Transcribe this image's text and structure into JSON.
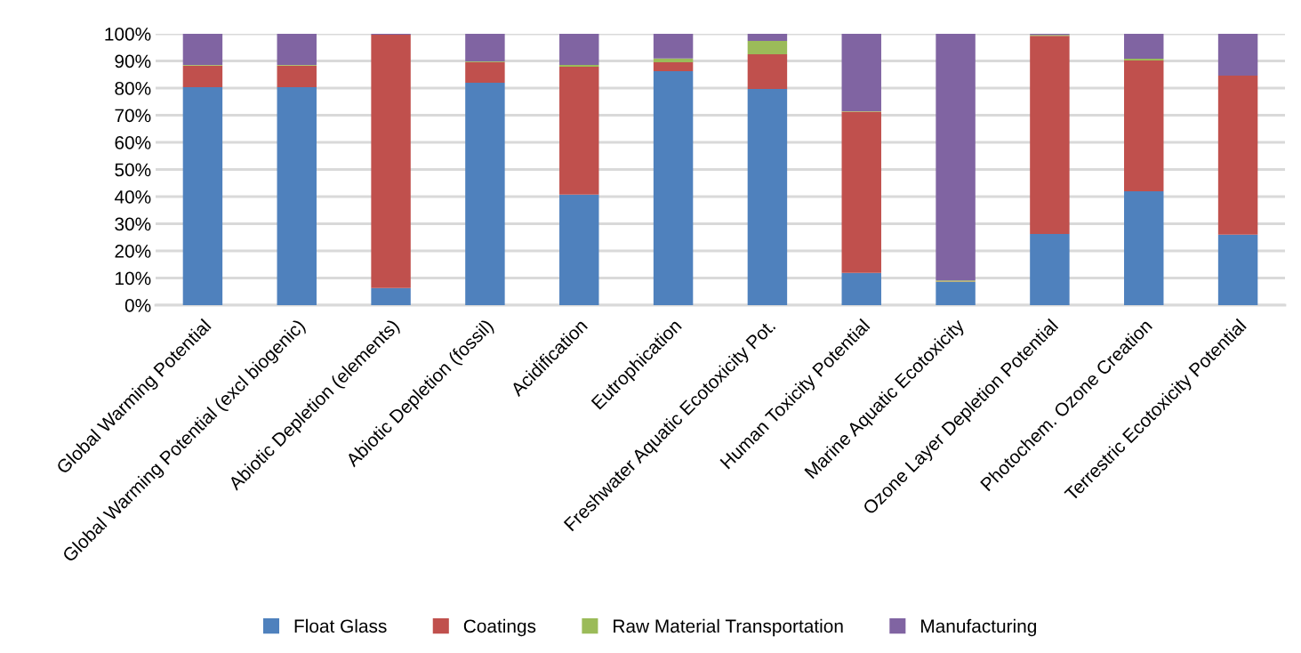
{
  "chart_data": {
    "type": "bar",
    "stacked": true,
    "categories": [
      "Global Warming Potential",
      "Global Warming Potential (excl biogenic)",
      "Abiotic Depletion (elements)",
      "Abiotic Depletion (fossil)",
      "Acidification",
      "Eutrophication",
      "Freshwater Aquatic Ecotoxicity Pot.",
      "Human Toxicity Potential",
      "Marine Aquatic Ecotoxicity",
      "Ozone Layer Depletion Potential",
      "Photochem. Ozone Creation",
      "Terrestric Ecotoxicity Potential"
    ],
    "series": [
      {
        "name": "Float Glass",
        "color": "#4f81bd",
        "values": [
          80.3,
          80.3,
          6.3,
          82.0,
          40.7,
          86.2,
          79.7,
          11.9,
          8.5,
          26.2,
          42.0,
          26.0
        ]
      },
      {
        "name": "Coatings",
        "color": "#c0504d",
        "values": [
          8.0,
          8.0,
          93.4,
          7.6,
          47.2,
          3.3,
          12.8,
          59.4,
          0.2,
          73.1,
          48.2,
          58.6
        ]
      },
      {
        "name": "Raw Material Transportation",
        "color": "#9bbb59",
        "values": [
          0.2,
          0.2,
          0.0,
          0.2,
          0.6,
          1.4,
          4.9,
          0.2,
          0.4,
          0.3,
          0.6,
          0.0
        ]
      },
      {
        "name": "Manufacturing",
        "color": "#8064a2",
        "values": [
          11.5,
          11.5,
          0.3,
          10.2,
          11.5,
          9.1,
          2.6,
          28.5,
          90.9,
          0.4,
          9.2,
          15.4
        ]
      }
    ],
    "ylim": [
      0,
      100
    ],
    "yticks": [
      {
        "value": 0,
        "label": "0%"
      },
      {
        "value": 10,
        "label": "10%"
      },
      {
        "value": 20,
        "label": "20%"
      },
      {
        "value": 30,
        "label": "30%"
      },
      {
        "value": 40,
        "label": "40%"
      },
      {
        "value": 50,
        "label": "50%"
      },
      {
        "value": 60,
        "label": "60%"
      },
      {
        "value": 70,
        "label": "70%"
      },
      {
        "value": 80,
        "label": "80%"
      },
      {
        "value": 90,
        "label": "90%"
      },
      {
        "value": 100,
        "label": "100%"
      }
    ],
    "grid": "y",
    "legend": "bottom"
  }
}
